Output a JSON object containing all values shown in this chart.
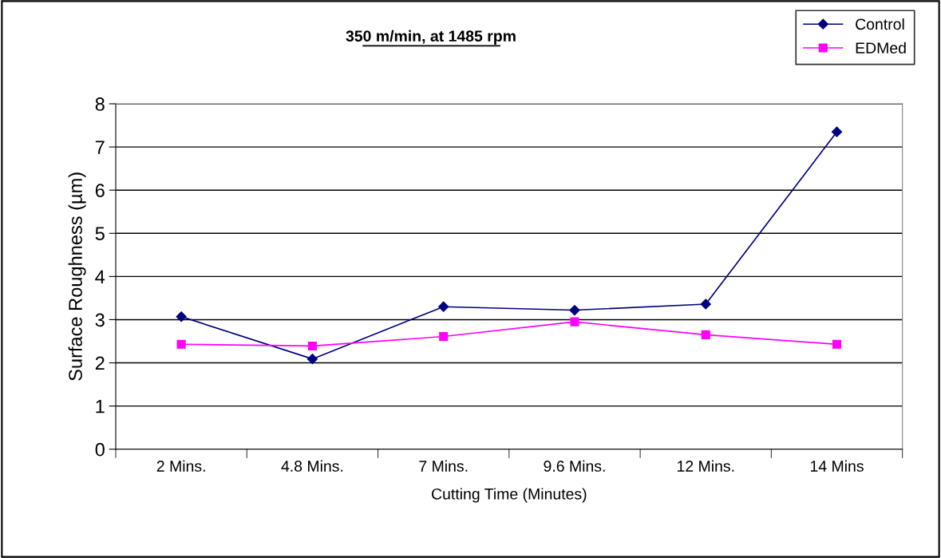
{
  "chart_data": {
    "type": "line",
    "title": "350 m/min, at 1485 rpm",
    "xlabel": "Cutting Time (Minutes)",
    "ylabel": "Surface Roughness (µm)",
    "categories": [
      "2 Mins.",
      "4.8 Mins.",
      "7 Mins.",
      "9.6 Mins.",
      "12 Mins.",
      "14 Mins"
    ],
    "series": [
      {
        "name": "Control",
        "color": "#000080",
        "marker": "diamond",
        "values": [
          3.07,
          2.09,
          3.3,
          3.22,
          3.36,
          7.35
        ]
      },
      {
        "name": "EDMed",
        "color": "#ff00ff",
        "marker": "square",
        "values": [
          2.43,
          2.39,
          2.61,
          2.95,
          2.65,
          2.43
        ]
      }
    ],
    "ylim": [
      0,
      8
    ],
    "yticks": [
      0,
      1,
      2,
      3,
      4,
      5,
      6,
      7,
      8
    ],
    "grid": "y",
    "legend": "top right",
    "line_style": "solid"
  }
}
